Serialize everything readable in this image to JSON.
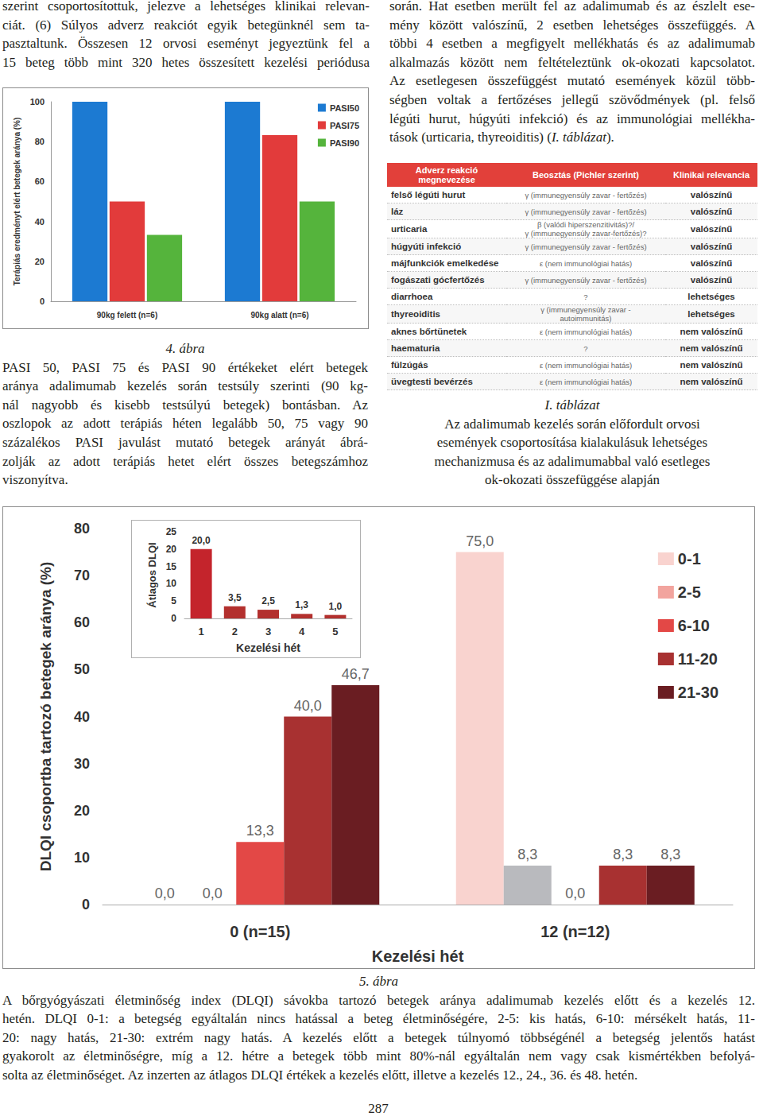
{
  "document": {
    "left_top": [
      "szerint csoportosítottuk, jelezve a lehetséges klinikai relevan-",
      "ciát. (6) Súlyos adverz reakciót egyik betegünknél sem ta-",
      "pasztaltunk. Összesen 12 orvosi eseményt jegyeztünk fel a",
      "15 beteg több mint 320 hetes összesített kezelési periódusa"
    ],
    "right_top": [
      "során. Hat esetben merült fel az adalimumab és az észlelt ese-",
      "mény között valószínű, 2 esetben lehetséges összefüggés. A",
      "többi 4 esetben a megfigyelt mellékhatás és az adalimumab",
      "alkalmazás között nem feltételeztünk ok-okozati kapcsolatot.",
      "Az esetlegesen összefüggést mutató események közül több-",
      "ségben voltak a fertőzéses jellegű szövődmények (pl. felső",
      "légúti hurut, húgyúti infekció) és az immunológiai mellékha-",
      [
        "tások (urticaria, thyreoiditis) (",
        {
          "italic": "I. táblázat"
        },
        ")."
      ]
    ],
    "figure4_caption": {
      "label": "4. ábra",
      "lines": [
        "PASI 50, PASI 75 és PASI 90 értékeket elért betegek",
        "aránya adalimumab kezelés során testsúly szerinti (90 kg-",
        "nál nagyobb és kisebb testsúlyú betegek) bontásban. Az",
        "oszlopok az adott terápiás héten legalább 50, 75 vagy 90",
        "százalékos PASI javulást mutató betegek arányát ábrá-",
        "zolják az adott terápiás hetet elért összes betegszámhoz",
        "viszonyítva."
      ]
    },
    "table": {
      "header": [
        "Adverz reakció megnevezése",
        "Beosztás (Pichler szerint)",
        "Klinikai relevancia"
      ],
      "rows": [
        [
          "felső légúti hurut",
          "γ (immunegyensúly zavar - fertőzés)",
          "valószínű"
        ],
        [
          "láz",
          "γ (immunegyensúly zavar - fertőzés)",
          "valószínű"
        ],
        [
          "urticaria",
          [
            "β (valódi hiperszenzitivitás)?/",
            "γ (immunegyensúly zavar-fertőzés)?"
          ],
          "valószínű"
        ],
        [
          "húgyúti infekció",
          "γ (immunegyensúly zavar - fertőzés)",
          "valószínű"
        ],
        [
          "májfunkciók emelkedése",
          "ε (nem immunológiai hatás)",
          "valószínű"
        ],
        [
          "fogászati gócfertőzés",
          "γ (immunegyensúly zavar - fertőzés)",
          "valószínű"
        ],
        [
          "diarrhoea",
          "?",
          "lehetséges"
        ],
        [
          "thyreoiditis",
          [
            "γ (immunegyensúly zavar -",
            "autoimmunitás)"
          ],
          "lehetséges"
        ],
        [
          "aknes bőrtünetek",
          "ε (nem immunológiai hatás)",
          "nem valószínű"
        ],
        [
          "haematuria",
          "?",
          "nem valószínű"
        ],
        [
          "fülzúgás",
          "ε (nem immunológiai hatás)",
          "nem valószínű"
        ],
        [
          "üvegtesti bevérzés",
          "ε (nem immunológiai hatás)",
          "nem valószínű"
        ]
      ]
    },
    "table_caption": {
      "label": "I. táblázat",
      "lines": [
        "Az adalimumab kezelés során előfordult orvosi",
        "események csoportosítása kialakulásuk lehetséges",
        "mechanizmusa és az adalimumabbal való esetleges",
        "ok-okozati összefüggése alapján"
      ]
    },
    "figure5_caption": {
      "label": "5. ábra",
      "lines": [
        "A bőrgyógyászati életminőség index (DLQI) sávokba tartozó betegek aránya adalimumab kezelés előtt és a kezelés 12.",
        "hetén. DLQI 0-1: a betegség egyáltalán nincs hatással a beteg életminőségére, 2-5: kis hatás, 6-10: mérsékelt hatás, 11-",
        "20: nagy hatás, 21-30: extrém nagy hatás. A kezelés előtt a betegek túlnyomó többségénél a betegség jelentős hatást",
        "gyakorolt az életminőségre, míg a 12. hétre a betegek több mint 80%-nál egyáltalán nem vagy csak kismértékben befolyá-",
        "solta az életminőséget. Az inzerten az átlagos DLQI értékek a kezelés előtt, illetve a kezelés 12., 24., 36. és 48. hetén."
      ]
    },
    "page_number": "287"
  },
  "chart_data": [
    {
      "type": "bar",
      "ylabel": "Terápiás eredményt elért betegek aránya (%)",
      "categories": [
        "90kg felett (n=6)",
        "90kg alatt (n=6)"
      ],
      "series": [
        {
          "name": "PASI50",
          "color": "#1c7ad2",
          "values": [
            100,
            100
          ]
        },
        {
          "name": "PASI75",
          "color": "#e23b3b",
          "values": [
            50,
            83.3
          ]
        },
        {
          "name": "PASI90",
          "color": "#55b43c",
          "values": [
            33.3,
            50
          ]
        }
      ],
      "ylim": [
        0,
        100
      ],
      "yticks": [
        0,
        20,
        40,
        60,
        80,
        100
      ],
      "grid": false,
      "legend": "upper right"
    },
    {
      "type": "bar",
      "xlabel": "Kezelési hét",
      "ylabel": "DLQI csoportba tartozó betegek aránya (%)",
      "categories": [
        "0 (n=15)",
        "12 (n=12)"
      ],
      "series": [
        {
          "name": "0-1",
          "color": "#f9d3cf",
          "values": [
            0.0,
            75.0
          ],
          "value_labels": [
            "0,0",
            "75,0"
          ]
        },
        {
          "name": "2-5",
          "color": "#f2a49e",
          "colors": [
            "#f2a49e",
            "#b9babe"
          ],
          "values": [
            0.0,
            8.3
          ],
          "value_labels": [
            "0,0",
            "8,3"
          ]
        },
        {
          "name": "6-10",
          "color": "#e34846",
          "values": [
            13.3,
            0.0
          ],
          "value_labels": [
            "13,3",
            "0,0"
          ]
        },
        {
          "name": "11-20",
          "color": "#a83131",
          "values": [
            40.0,
            8.3
          ],
          "value_labels": [
            "40,0",
            "8,3"
          ]
        },
        {
          "name": "21-30",
          "color": "#6a1d22",
          "values": [
            46.7,
            8.3
          ],
          "value_labels": [
            "46,7",
            "8,3"
          ]
        }
      ],
      "ylim": [
        0,
        80
      ],
      "yticks": [
        0,
        10,
        20,
        30,
        40,
        50,
        60,
        70,
        80
      ],
      "grid": false,
      "legend": "upper right",
      "data_labels": true
    },
    {
      "type": "bar",
      "xlabel": "Kezelési hét",
      "ylabel": "Átlagos DLQI",
      "categories": [
        "1",
        "2",
        "3",
        "4",
        "5"
      ],
      "series": [
        {
          "name": "Átlagos DLQI",
          "color": "#b3302e",
          "colors": [
            "#c4242c",
            "#b3302e",
            "#b3302e",
            "#b3302e",
            "#b3302e"
          ],
          "values": [
            20.0,
            3.5,
            2.5,
            1.3,
            1.0
          ],
          "value_labels": [
            "20,0",
            "3,5",
            "2,5",
            "1,3",
            "1,0"
          ]
        }
      ],
      "ylim": [
        0,
        25
      ],
      "yticks": [
        0,
        5,
        10,
        15,
        20,
        25
      ],
      "grid": false,
      "data_labels": true
    }
  ]
}
